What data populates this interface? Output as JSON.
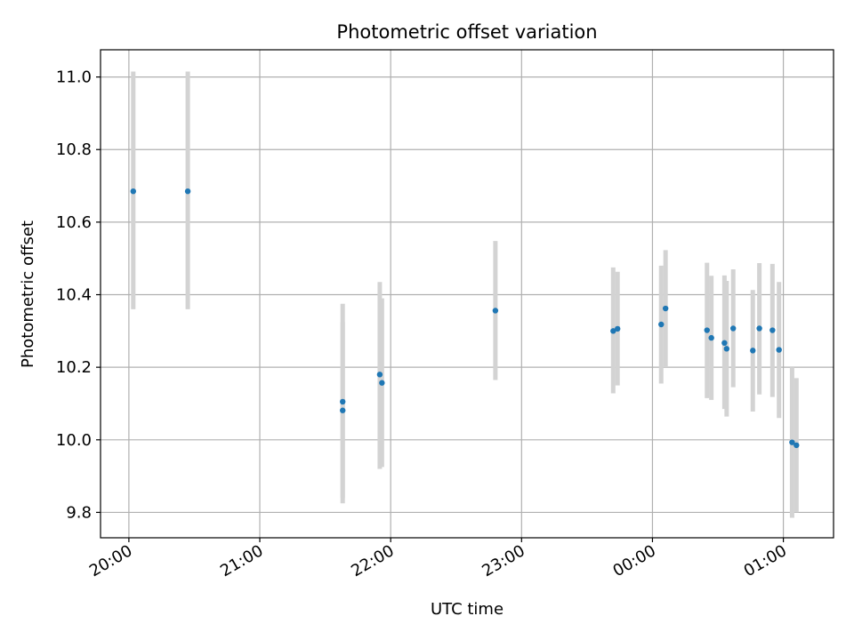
{
  "chart_data": {
    "type": "scatter",
    "title": "Photometric offset variation",
    "xlabel": "UTC time",
    "ylabel": "Photometric offset",
    "x_axis": "time",
    "xlim": [
      "19:47",
      "25:23"
    ],
    "ylim": [
      9.73,
      11.075
    ],
    "x_ticks": [
      {
        "label": "20:00",
        "time": "20:00"
      },
      {
        "label": "21:00",
        "time": "21:00"
      },
      {
        "label": "22:00",
        "time": "22:00"
      },
      {
        "label": "23:00",
        "time": "23:00"
      },
      {
        "label": "00:00",
        "time": "24:00"
      },
      {
        "label": "01:00",
        "time": "25:00"
      }
    ],
    "y_ticks": [
      9.8,
      10.0,
      10.2,
      10.4,
      10.6,
      10.8,
      11.0
    ],
    "y_tick_labels": [
      "9.8",
      "10.0",
      "10.2",
      "10.4",
      "10.6",
      "10.8",
      "11.0"
    ],
    "grid": true,
    "colors": {
      "marker": "#1f77b4",
      "errorbar": "#d3d3d3",
      "grid": "#b0b0b0",
      "axes": "#000000"
    },
    "points": [
      {
        "time": "20:02",
        "y": 10.685,
        "low": 10.36,
        "high": 11.015
      },
      {
        "time": "20:27",
        "y": 10.685,
        "low": 10.36,
        "high": 11.015
      },
      {
        "time": "21:38",
        "y": 10.081,
        "low": 9.84,
        "high": 10.325
      },
      {
        "time": "21:38",
        "y": 10.105,
        "low": 9.825,
        "high": 10.375
      },
      {
        "time": "21:55",
        "y": 10.18,
        "low": 9.92,
        "high": 10.435
      },
      {
        "time": "21:56",
        "y": 10.157,
        "low": 9.925,
        "high": 10.39
      },
      {
        "time": "22:48",
        "y": 10.356,
        "low": 10.165,
        "high": 10.548
      },
      {
        "time": "23:42",
        "y": 10.3,
        "low": 10.128,
        "high": 10.475
      },
      {
        "time": "23:44",
        "y": 10.306,
        "low": 10.15,
        "high": 10.463
      },
      {
        "time": "24:04",
        "y": 10.318,
        "low": 10.155,
        "high": 10.48
      },
      {
        "time": "24:06",
        "y": 10.362,
        "low": 10.2,
        "high": 10.523
      },
      {
        "time": "24:25",
        "y": 10.302,
        "low": 10.115,
        "high": 10.488
      },
      {
        "time": "24:27",
        "y": 10.281,
        "low": 10.11,
        "high": 10.452
      },
      {
        "time": "24:33",
        "y": 10.267,
        "low": 10.085,
        "high": 10.453
      },
      {
        "time": "24:34",
        "y": 10.251,
        "low": 10.064,
        "high": 10.438
      },
      {
        "time": "24:37",
        "y": 10.307,
        "low": 10.145,
        "high": 10.47
      },
      {
        "time": "24:46",
        "y": 10.246,
        "low": 10.078,
        "high": 10.413
      },
      {
        "time": "24:49",
        "y": 10.307,
        "low": 10.125,
        "high": 10.487
      },
      {
        "time": "24:55",
        "y": 10.302,
        "low": 10.118,
        "high": 10.485
      },
      {
        "time": "24:58",
        "y": 10.248,
        "low": 10.06,
        "high": 10.435
      },
      {
        "time": "25:04",
        "y": 9.993,
        "low": 9.785,
        "high": 10.2
      },
      {
        "time": "25:06",
        "y": 9.985,
        "low": 9.8,
        "high": 10.17
      }
    ]
  }
}
